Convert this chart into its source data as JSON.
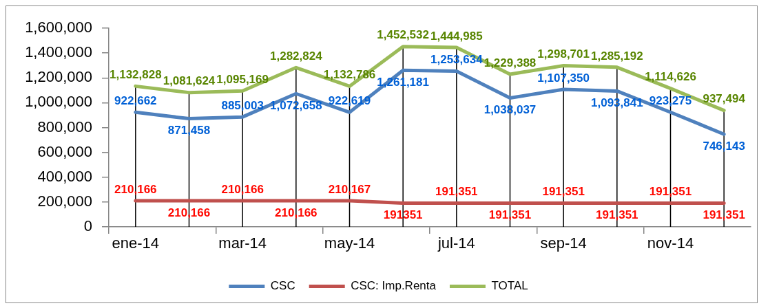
{
  "chart_data": {
    "type": "line",
    "categories": [
      "ene-14",
      null,
      "mar-14",
      null,
      "may-14",
      null,
      "jul-14",
      null,
      "sep-14",
      null,
      "nov-14",
      null
    ],
    "series": [
      {
        "name": "CSC",
        "color": "#4f81bd",
        "values": [
          922662,
          871458,
          885003,
          1072658,
          922619,
          1261181,
          1253634,
          1038037,
          1107350,
          1093841,
          923275,
          746143
        ],
        "value_labels": [
          "922,662",
          "871,458",
          "885,003",
          "1,072,658",
          "922,619",
          "1,261,181",
          "1,253,634",
          "1,038,037",
          "1,107,350",
          "1,093,841",
          "923,275",
          "746,143"
        ]
      },
      {
        "name": "CSC: Imp.Renta",
        "color": "#c0504d",
        "values": [
          210166,
          210166,
          210166,
          210166,
          210167,
          191351,
          191351,
          191351,
          191351,
          191351,
          191351,
          191351
        ],
        "value_labels": [
          "210,166",
          "210,166",
          "210,166",
          "210,166",
          "210,167",
          "191351",
          "191,351",
          "191,351",
          "191,351",
          "191,351",
          "191,351",
          "191,351"
        ]
      },
      {
        "name": "TOTAL",
        "color": "#9bbb59",
        "values": [
          1132828,
          1081624,
          1095169,
          1282824,
          1132786,
          1452532,
          1444985,
          1229388,
          1298701,
          1285192,
          1114626,
          937494
        ],
        "value_labels": [
          "1,132,828",
          "1,081,624",
          "1,095,169",
          "1,282,824",
          "1,132,786",
          "1,452,532",
          "1,444,985",
          "1,229,388",
          "1,298,701",
          "1,285,192",
          "1,114,626",
          "937,494"
        ]
      }
    ],
    "ylim": [
      0,
      1600000
    ],
    "yticks": [
      {
        "value": 0,
        "label": "0"
      },
      {
        "value": 200000,
        "label": "200,000"
      },
      {
        "value": 400000,
        "label": "400,000"
      },
      {
        "value": 600000,
        "label": "600,000"
      },
      {
        "value": 800000,
        "label": "800,000"
      },
      {
        "value": 1000000,
        "label": "1,000,000"
      },
      {
        "value": 1200000,
        "label": "1,200,000"
      },
      {
        "value": 1400000,
        "label": "1,400,000"
      },
      {
        "value": 1600000,
        "label": "1,600,000"
      }
    ],
    "grid": "x",
    "legend": "bottom",
    "marker": "none",
    "line_style": "solid"
  }
}
